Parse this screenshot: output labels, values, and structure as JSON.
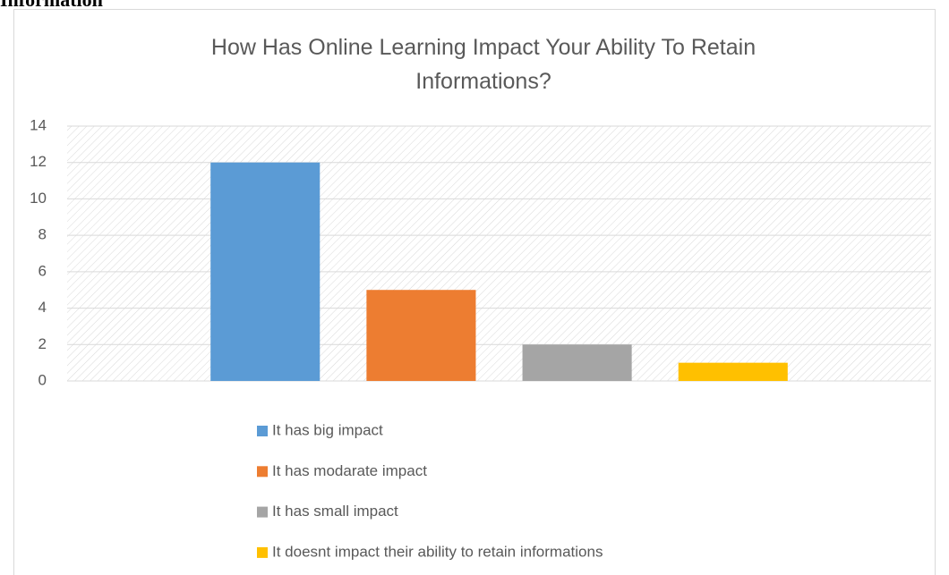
{
  "page_heading": "Information",
  "chart_data": {
    "type": "bar",
    "title": "How Has Online Learning Impact Your Ability To Retain Informations?",
    "categories": [
      null
    ],
    "series": [
      {
        "name": "It has big impact",
        "color": "#5b9bd5",
        "values": [
          12
        ]
      },
      {
        "name": "It has modarate impact",
        "color": "#ed7d31",
        "values": [
          5
        ]
      },
      {
        "name": "It has small impact",
        "color": "#a5a5a5",
        "values": [
          2
        ]
      },
      {
        "name": "It doesnt impact their ability to retain informations",
        "color": "#ffc000",
        "values": [
          1
        ]
      }
    ],
    "ylim": [
      0,
      14
    ],
    "yticks": [
      0,
      2,
      4,
      6,
      8,
      10,
      12,
      14
    ],
    "grid": true,
    "legend": "bottom"
  }
}
